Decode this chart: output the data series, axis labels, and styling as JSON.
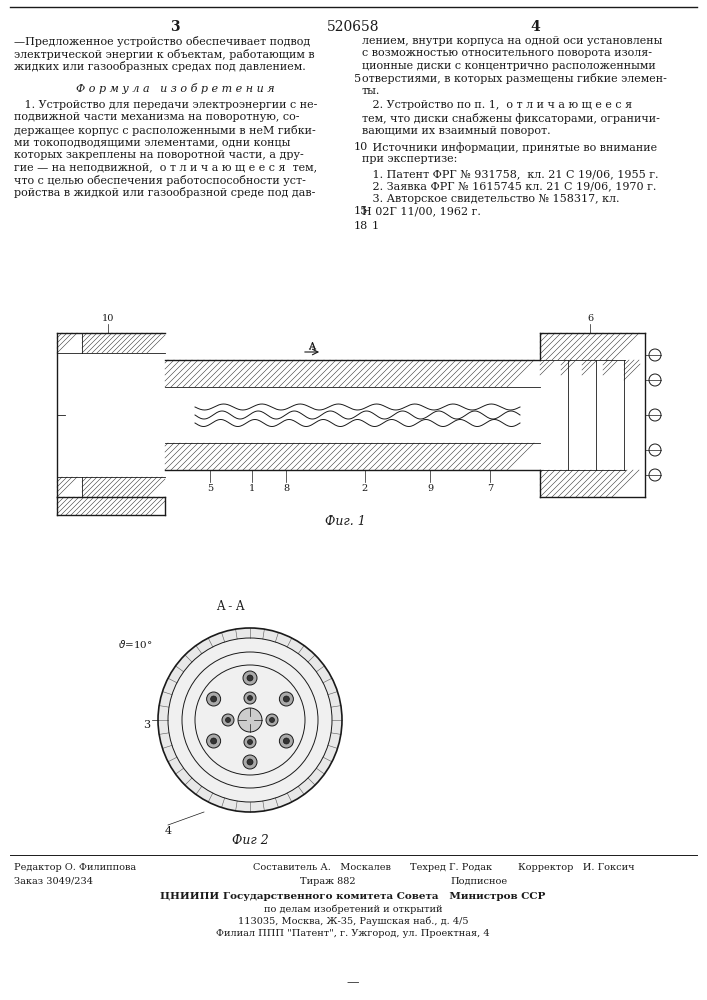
{
  "patent_number": "520658",
  "background_color": "#ffffff",
  "text_color": "#1a1a1a",
  "col1_header": "3",
  "col2_header": "4",
  "col1_text_top": [
    "—Предложенное устройство обеспечивает подвод",
    "электрической энергии к объектам, работающим в",
    "жидких или газообразных средах под давлением."
  ],
  "formula_header": "Ф о р м у л а   и з о б р е т е н и я",
  "formula_text": [
    "   1. Устройство для передачи электроэнергии с не-",
    "подвижной части механизма на поворотную, со-",
    "держащее корпус с расположенными в неМ гибки-",
    "ми токоподводящими элементами, одни концы",
    "которых закреплены на поворотной части, а дру-",
    "гие — на неподвижной,  о т л и ч а ю щ е е с я  тем,",
    "что с целью обеспечения работоспособности уст-",
    "ройства в жидкой или газообразной среде под дав-"
  ],
  "col2_text_top": [
    "лением, внутри корпуса на одной оси установлены",
    "с возможностью относительного поворота изоля-",
    "ционные диски с концентрично расположенными",
    "отверстиями, в которых размещены гибкие элемен-",
    "ты."
  ],
  "col2_item5": "5",
  "col2_claim2": [
    "   2. Устройство по п. 1,  о т л и ч а ю щ е е с я",
    "тем, что диски снабжены фиксаторами, ограничи-",
    "вающими их взаимный поворот."
  ],
  "col2_sources_header": [
    "   Источники информации, принятые во внимание",
    "при экспертизе:"
  ],
  "col2_item10": "10",
  "col2_item15": "15",
  "col2_sources": [
    "   1. Патент ФРГ № 931758,  кл. 21 С 19/06, 1955 г.",
    "   2. Заявка ФРГ № 1615745 кл. 21 С 19/06, 1970 г.",
    "   3. Авторское свидетельство № 158317, кл.",
    "Н 02Г 11/00, 1962 г."
  ],
  "col2_item18": "18",
  "col2_item18b": "1",
  "fig1_caption": "Фиг. 1",
  "fig2_caption": "Фиг 2",
  "section_label": "A - A",
  "bottom_left_text": "Редактор О. Филиппова",
  "bottom_center_col1": "Составитель А.   Москалев",
  "bottom_center_col2": "Техред Г. Родак",
  "bottom_center_col3": "Корректор   И. Гоксич",
  "bottom_order": "Заказ 3049/234",
  "bottom_circulation": "Тираж 882",
  "bottom_subscription": "Подписное",
  "bottom_institute": "ЦНИИПИ Государственного комитета Совета   Министров ССР",
  "bottom_institute2": "по делам изобретений и открытий",
  "bottom_address": "113035, Москва, Ж-35, Раушская наб., д. 4/5",
  "bottom_branch": "Филиал ППП \"Патент\", г. Ужгород, ул. Проектная, 4"
}
